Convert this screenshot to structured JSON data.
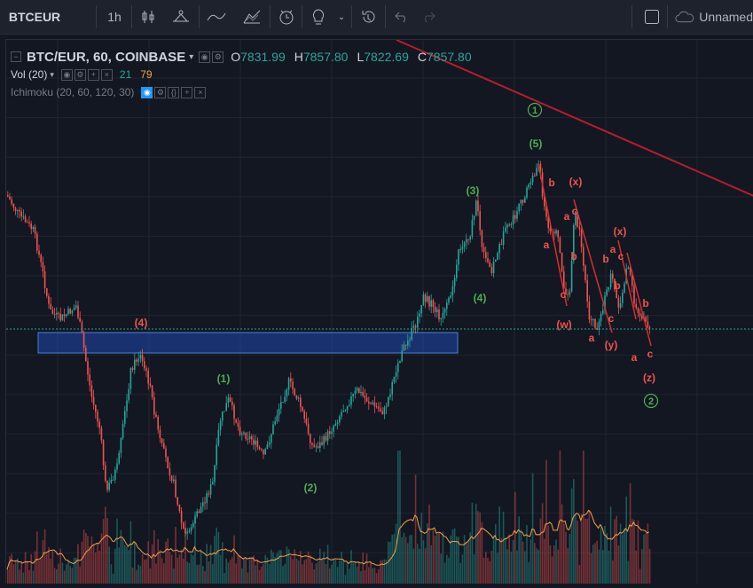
{
  "toolbar": {
    "symbol": "BTCEUR",
    "interval": "1h",
    "layout_name": "Unnamed"
  },
  "legend": {
    "title": "BTC/EUR, 60, COINBASE",
    "open_label": "O",
    "open": "7831.99",
    "high_label": "H",
    "high": "7857.80",
    "low_label": "L",
    "low": "7822.69",
    "close_label": "C",
    "close": "7857.80",
    "vol_label": "Vol (20)",
    "vol_a": "21",
    "vol_b": "79",
    "ichimoku_label": "Ichimoku (20, 60, 120, 30)"
  },
  "colors": {
    "background": "#131722",
    "up": "#26a69a",
    "down": "#ef5350",
    "wave_green": "#4caf50",
    "wave_red": "#ef5350",
    "zone_fill": "#2962ff",
    "trendline": "#b71c2c",
    "vol_ma": "#f0a04b"
  },
  "chart_data": {
    "type": "candlestick",
    "title": "BTC/EUR, 60, COINBASE",
    "series_anchor_close": [
      7990,
      7960,
      7930,
      7900,
      7860,
      7830,
      7810,
      7800,
      7790,
      7770,
      7720,
      7700,
      7660,
      7630,
      7590,
      7560,
      7520,
      7500,
      7470,
      7440,
      7420,
      7400,
      7395,
      7410,
      7430,
      7460,
      7490,
      7510,
      7520,
      7540,
      7560,
      7580,
      7600,
      7610,
      7590,
      7570,
      7550,
      7530,
      7520,
      7510,
      7520,
      7540,
      7560,
      7580,
      7600,
      7620,
      7640,
      7660,
      7680,
      7700,
      7720,
      7740,
      7760,
      7780,
      7800,
      7830,
      7860,
      7890,
      7920,
      7950,
      7980,
      8000,
      8010,
      7990,
      7960,
      7930,
      7900,
      7880,
      7860,
      7850,
      7840,
      7830,
      7820,
      7810,
      7800,
      7790,
      7780,
      7780,
      7790,
      7800,
      7810,
      7820,
      7830,
      7835,
      7840,
      7845,
      7850,
      7855,
      7857.8
    ],
    "elliott_wave_labels": [
      {
        "label": "(4)",
        "color": "red"
      },
      {
        "label": "(1)",
        "color": "green"
      },
      {
        "label": "(2)",
        "color": "green"
      },
      {
        "label": "(3)",
        "color": "green"
      },
      {
        "label": "(4)",
        "color": "green"
      },
      {
        "label": "(5)",
        "color": "green"
      },
      {
        "label": "1",
        "color": "green",
        "circled": true
      },
      {
        "label": "2",
        "color": "green",
        "circled": true
      },
      {
        "label": "(w)",
        "color": "red"
      },
      {
        "label": "(x)",
        "color": "red"
      },
      {
        "label": "(y)",
        "color": "red"
      },
      {
        "label": "(x)",
        "color": "red"
      },
      {
        "label": "(z)",
        "color": "red"
      },
      {
        "label": "a",
        "color": "red"
      },
      {
        "label": "b",
        "color": "red"
      },
      {
        "label": "c",
        "color": "red"
      }
    ],
    "current_price": 7857.8,
    "grid": true,
    "legend_position": "top-left"
  }
}
